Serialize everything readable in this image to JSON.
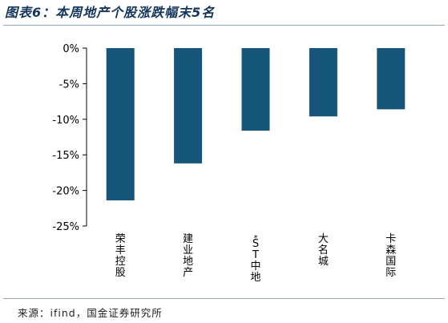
{
  "title": "图表6：本周地产个股涨跌幅末5名",
  "source": "来源：ifind，国金证券研究所",
  "colors": {
    "bar": "#15567a",
    "title": "#15365c",
    "axis": "#000000"
  },
  "chart_data": {
    "type": "bar",
    "categories": [
      "荣丰控股",
      "建业地产",
      "*ST中地",
      "大名城",
      "卡森国际"
    ],
    "values": [
      -21.4,
      -16.2,
      -11.6,
      -9.6,
      -8.6
    ],
    "yticks": [
      0,
      -5,
      -10,
      -15,
      -20,
      -25
    ],
    "ytick_labels": [
      "0%",
      "-5%",
      "-10%",
      "-15%",
      "-20%",
      "-25%"
    ],
    "ylim": [
      -25,
      0
    ],
    "xlabel": "",
    "ylabel": "",
    "grid": false
  }
}
